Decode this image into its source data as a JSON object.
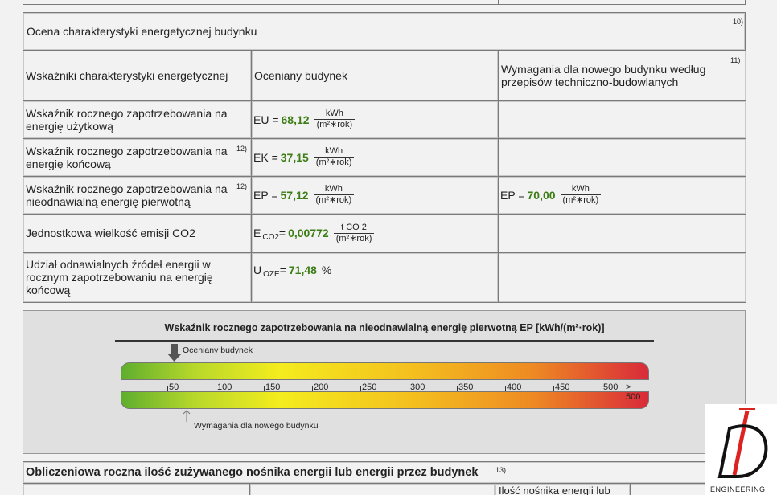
{
  "section": {
    "title": "Ocena charakterystyki energetycznej budynku",
    "footnote": "10)"
  },
  "table": {
    "header": [
      {
        "lines": [
          "Wskaźniki charakterystyki energetycznej"
        ]
      },
      {
        "lines": [
          "Oceniany budynek"
        ]
      },
      {
        "lines": [
          "Wymagania dla nowego budynku według",
          "przepisów techniczno-budowlanych"
        ],
        "footnote": "11)"
      }
    ],
    "rows": [
      {
        "label": [
          "Wskaźnik rocznego zapotrzebowania na",
          "energię użytkową"
        ],
        "value": {
          "symbol": "EU =",
          "number": "68,12",
          "unit_num": "kWh",
          "unit_den": "(m²∗rok)"
        }
      },
      {
        "label": [
          "Wskaźnik rocznego zapotrzebowania na",
          "energię końcową"
        ],
        "footnote": "12)",
        "value": {
          "symbol": "EK =",
          "number": "37,15",
          "unit_num": "kWh",
          "unit_den": "(m²∗rok)"
        }
      },
      {
        "label": [
          "Wskaźnik rocznego zapotrzebowania na",
          "nieodnawialną energię pierwotną"
        ],
        "footnote": "12)",
        "value": {
          "symbol": "EP =",
          "number": "57,12",
          "unit_num": "kWh",
          "unit_den": "(m²∗rok)"
        },
        "requirement": {
          "symbol": "EP =",
          "number": "70,00",
          "unit_num": "kWh",
          "unit_den": "(m²∗rok)"
        }
      },
      {
        "label": [
          "Jednostkowa wielkość emisji CO2"
        ],
        "value": {
          "symbol": "E",
          "subscript": "CO2",
          "equals": "=",
          "number": "0,00772",
          "unit_num": "t CO 2",
          "unit_den": "(m²∗rok)"
        }
      },
      {
        "label": [
          "Udział odnawialnych źródeł energii w",
          "rocznym zapotrzebowaniu na energię",
          "końcową"
        ],
        "value": {
          "symbol": "U",
          "subscript": "OZE",
          "equals": "=",
          "number": "71,48",
          "unit": "%"
        }
      }
    ]
  },
  "scale": {
    "title": "Wskaźnik rocznego zapotrzebowania na nieodnawialną energię pierwotną EP [kWh/(m²·rok)]",
    "evaluated_label": "Oceniany budynek",
    "requirement_label": "Wymagania dla nowego budynku",
    "ticks": [
      "50",
      "100",
      "150",
      "200",
      "250",
      "300",
      "350",
      "400",
      "450",
      "500",
      "> 500"
    ]
  },
  "bottom_section": {
    "title": "Obliczeniowa roczna ilość zużywanego nośnika energii lub energii przez budynek",
    "footnote": "13)",
    "column_header": "Ilość nośnika energii lub"
  },
  "logo": {
    "text": "ENGINEERING"
  }
}
